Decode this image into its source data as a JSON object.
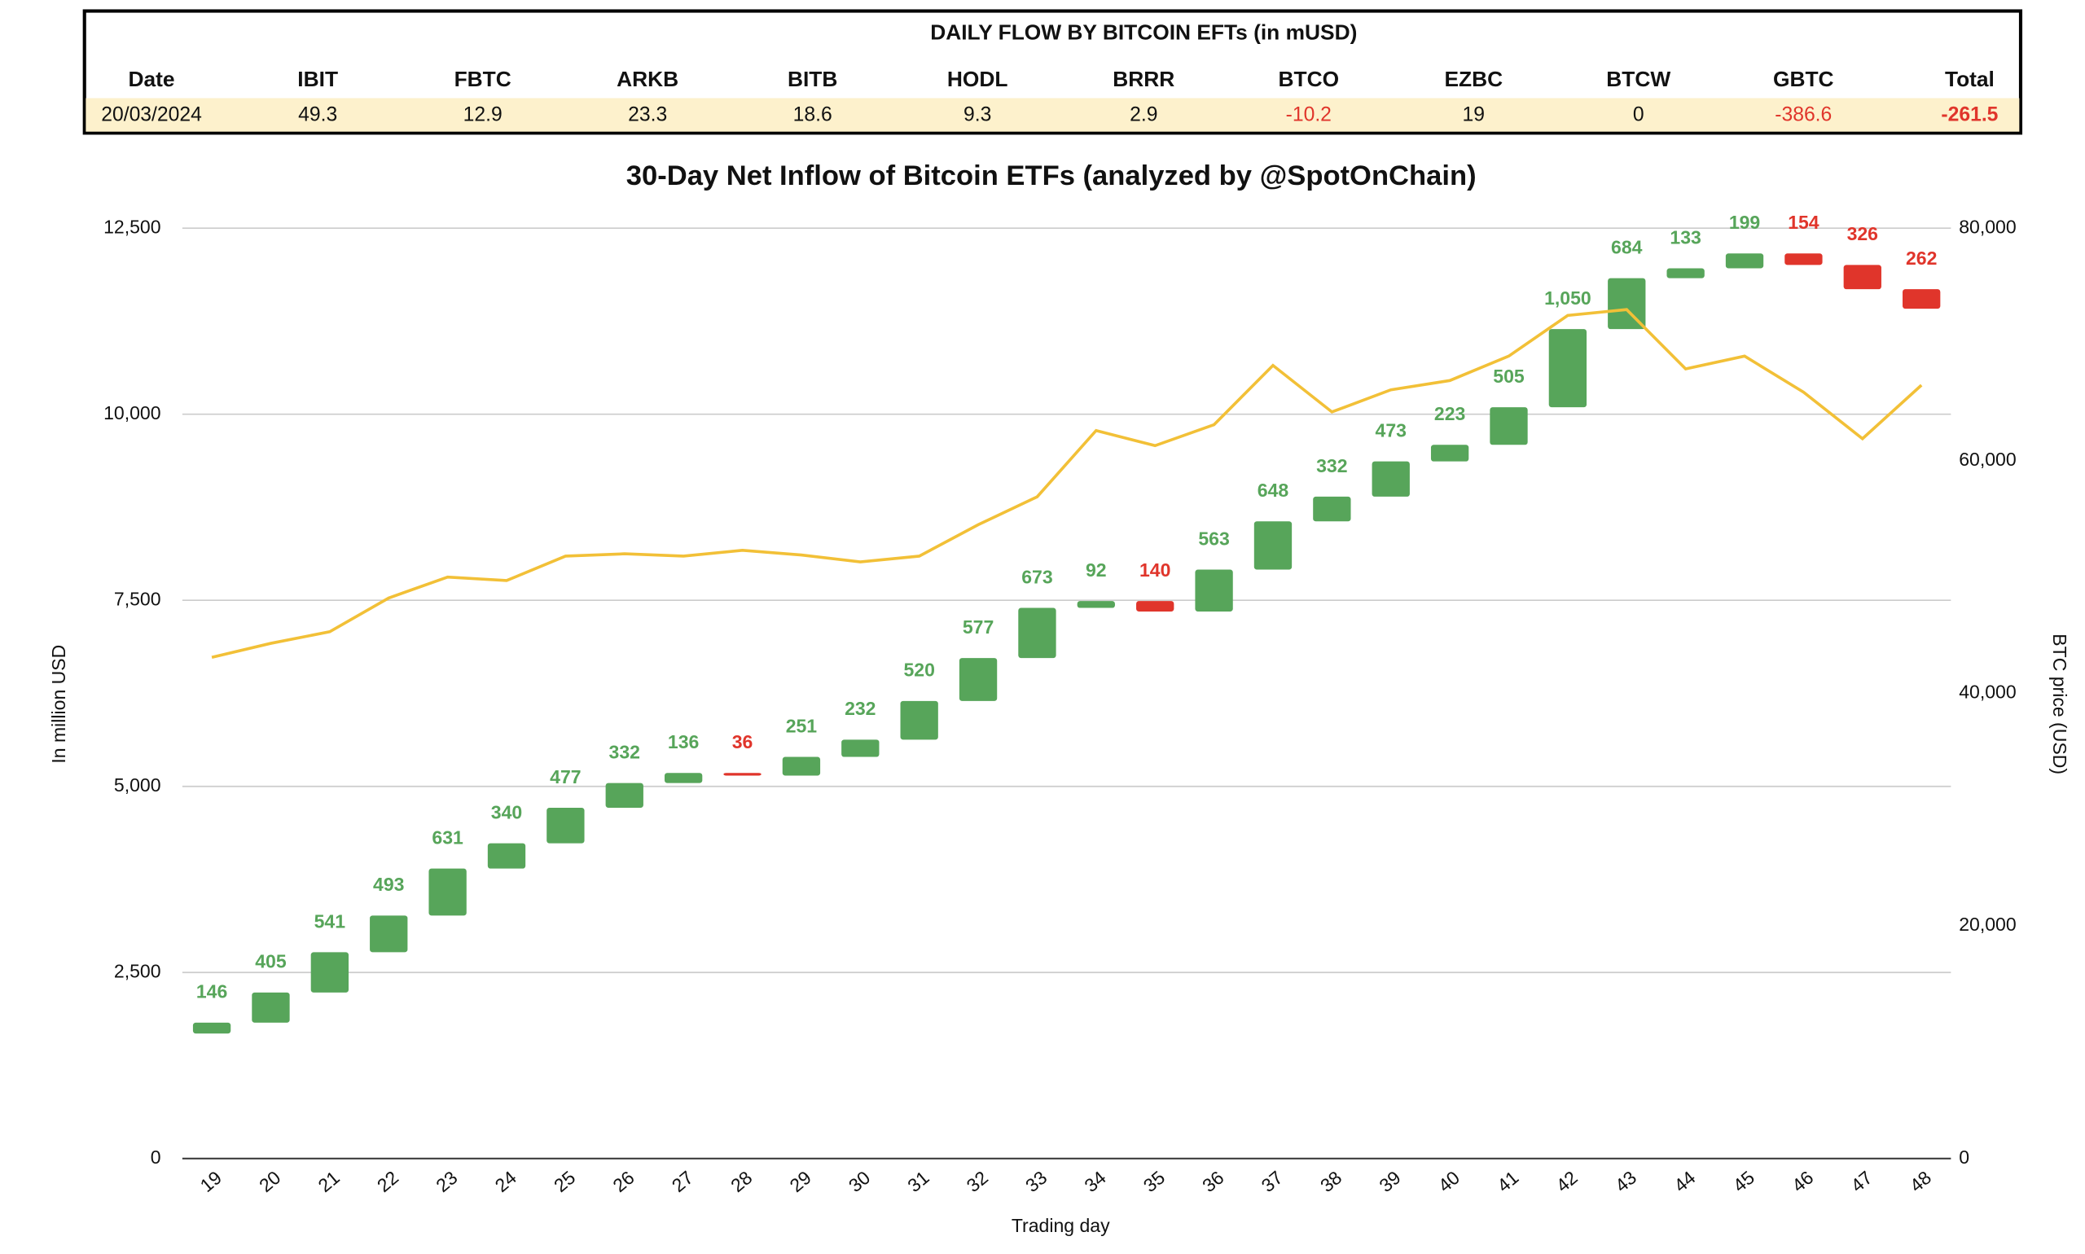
{
  "table": {
    "title": "DAILY FLOW BY BITCOIN EFTs (in mUSD)",
    "header": [
      "Date",
      "IBIT",
      "FBTC",
      "ARKB",
      "BITB",
      "HODL",
      "BRRR",
      "BTCO",
      "EZBC",
      "BTCW",
      "GBTC",
      "Total"
    ],
    "rows": [
      [
        "20/03/2024",
        "49.3",
        "12.9",
        "23.3",
        "18.6",
        "9.3",
        "2.9",
        "-10.2",
        "19",
        "0",
        "-386.6",
        "-261.5"
      ]
    ]
  },
  "chart_data": {
    "type": "waterfall",
    "title": "30-Day Net Inflow of Bitcoin ETFs (analyzed by @SpotOnChain)",
    "x_label": "Trading day",
    "y_label": "In million USD",
    "y2_label": "BTC price (USD)",
    "categories": [
      "19",
      "20",
      "21",
      "22",
      "23",
      "24",
      "25",
      "26",
      "27",
      "28",
      "29",
      "30",
      "31",
      "32",
      "33",
      "34",
      "35",
      "36",
      "37",
      "38",
      "39",
      "40",
      "41",
      "42",
      "43",
      "44",
      "45",
      "46",
      "47",
      "48"
    ],
    "start": 1680,
    "series": [
      {
        "values": [
          146,
          405,
          541,
          493,
          631,
          340,
          477,
          332,
          136,
          -36,
          251,
          232,
          520,
          577,
          673,
          92,
          -140,
          563,
          648,
          332,
          473,
          223,
          505,
          1050,
          684,
          133,
          199,
          -154,
          -326,
          -262
        ],
        "value_labels": [
          "146",
          "405",
          "541",
          "493",
          "631",
          "340",
          "477",
          "332",
          "136",
          "36",
          "251",
          "232",
          "520",
          "577",
          "673",
          "92",
          "140",
          "563",
          "648",
          "332",
          "473",
          "223",
          "505",
          "1,050",
          "684",
          "133",
          "199",
          "154",
          "326",
          "262"
        ],
        "color": "#57a55a",
        "negative_color": "#e0352b"
      },
      {
        "values": [
          43100,
          44300,
          45300,
          48200,
          50000,
          49700,
          51800,
          52000,
          51800,
          52300,
          51900,
          51300,
          51800,
          54500,
          56900,
          62600,
          61300,
          63100,
          68200,
          64200,
          66100,
          66900,
          69000,
          72500,
          73000,
          67900,
          69000,
          65900,
          61900,
          66500
        ],
        "axis": "y2",
        "color": "#f2c037"
      }
    ],
    "ylim": [
      0,
      12500
    ],
    "yticks": [
      0,
      {
        "value": 2500,
        "label": "2,500"
      },
      {
        "value": 5000,
        "label": "5,000"
      },
      {
        "value": 7500,
        "label": "7,500"
      },
      {
        "value": 10000,
        "label": "10,000"
      },
      {
        "value": 12500,
        "label": "12,500"
      }
    ],
    "y2lim": [
      0,
      80000
    ],
    "y2ticks": [
      0,
      {
        "value": 20000,
        "label": "20,000"
      },
      {
        "value": 40000,
        "label": "40,000"
      },
      {
        "value": 60000,
        "label": "60,000"
      },
      {
        "value": 80000,
        "label": "80,000"
      }
    ],
    "grid": true
  }
}
